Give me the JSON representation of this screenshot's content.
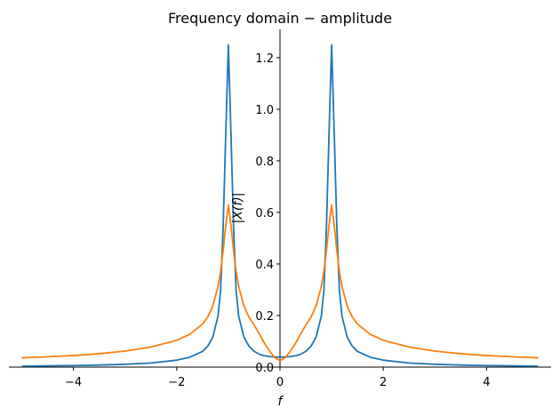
{
  "chart_data": {
    "type": "line",
    "title": "Frequency domain − amplitude",
    "xlabel": "f",
    "ylabel": "|X(f)|",
    "xlim": [
      -5.25,
      5.25
    ],
    "ylim": [
      0,
      1.31
    ],
    "x_ticks": [
      -4,
      -2,
      0,
      2,
      4
    ],
    "x_tick_labels": [
      "−4",
      "−2",
      "0",
      "2",
      "4"
    ],
    "y_ticks": [
      0.0,
      0.2,
      0.4,
      0.6,
      0.8,
      1.0,
      1.2
    ],
    "y_tick_labels": [
      "0.0",
      "0.2",
      "0.4",
      "0.6",
      "0.8",
      "1.0",
      "1.2"
    ],
    "grid": false,
    "legend": "none",
    "series": [
      {
        "color": "#1f77b4",
        "x": [
          -5,
          -4.5,
          -4,
          -3.5,
          -3,
          -2.5,
          -2,
          -1.75,
          -1.5,
          -1.4,
          -1.3,
          -1.2,
          -1.15,
          -1.1,
          -1.05,
          -1,
          -0.95,
          -0.9,
          -0.85,
          -0.8,
          -0.7,
          -0.6,
          -0.5,
          -0.4,
          -0.3,
          -0.2,
          -0.1,
          0,
          0.1,
          0.2,
          0.3,
          0.4,
          0.5,
          0.6,
          0.7,
          0.8,
          0.85,
          0.9,
          0.95,
          1,
          1.05,
          1.1,
          1.15,
          1.2,
          1.3,
          1.4,
          1.5,
          1.75,
          2,
          2.5,
          3,
          3.5,
          4,
          4.5,
          5
        ],
        "y": [
          0.004,
          0.005,
          0.006,
          0.008,
          0.011,
          0.016,
          0.027,
          0.038,
          0.061,
          0.081,
          0.117,
          0.198,
          0.298,
          0.549,
          0.908,
          1.25,
          0.908,
          0.549,
          0.298,
          0.198,
          0.117,
          0.081,
          0.061,
          0.05,
          0.044,
          0.041,
          0.039,
          0.039,
          0.039,
          0.041,
          0.044,
          0.05,
          0.061,
          0.081,
          0.117,
          0.198,
          0.298,
          0.549,
          0.908,
          1.25,
          0.908,
          0.549,
          0.298,
          0.198,
          0.117,
          0.081,
          0.061,
          0.038,
          0.027,
          0.016,
          0.011,
          0.008,
          0.006,
          0.005,
          0.004
        ]
      },
      {
        "color": "#ff7f0e",
        "x": [
          -5,
          -4.5,
          -4,
          -3.5,
          -3,
          -2.5,
          -2,
          -1.75,
          -1.5,
          -1.4,
          -1.3,
          -1.2,
          -1.15,
          -1.1,
          -1.05,
          -1,
          -0.95,
          -0.9,
          -0.85,
          -0.8,
          -0.7,
          -0.6,
          -0.5,
          -0.4,
          -0.3,
          -0.2,
          -0.1,
          0,
          0.1,
          0.2,
          0.3,
          0.4,
          0.5,
          0.6,
          0.7,
          0.8,
          0.85,
          0.9,
          0.95,
          1,
          1.05,
          1.1,
          1.15,
          1.2,
          1.3,
          1.4,
          1.5,
          1.75,
          2,
          2.5,
          3,
          3.5,
          4,
          4.5,
          5
        ],
        "y": [
          0.036,
          0.04,
          0.045,
          0.052,
          0.062,
          0.078,
          0.104,
          0.127,
          0.167,
          0.194,
          0.238,
          0.313,
          0.372,
          0.453,
          0.55,
          0.628,
          0.55,
          0.453,
          0.372,
          0.313,
          0.238,
          0.194,
          0.163,
          0.129,
          0.092,
          0.062,
          0.036,
          0.025,
          0.036,
          0.062,
          0.092,
          0.129,
          0.163,
          0.194,
          0.238,
          0.313,
          0.372,
          0.453,
          0.55,
          0.628,
          0.55,
          0.453,
          0.372,
          0.313,
          0.238,
          0.194,
          0.167,
          0.127,
          0.104,
          0.078,
          0.062,
          0.052,
          0.045,
          0.04,
          0.036
        ]
      }
    ]
  }
}
